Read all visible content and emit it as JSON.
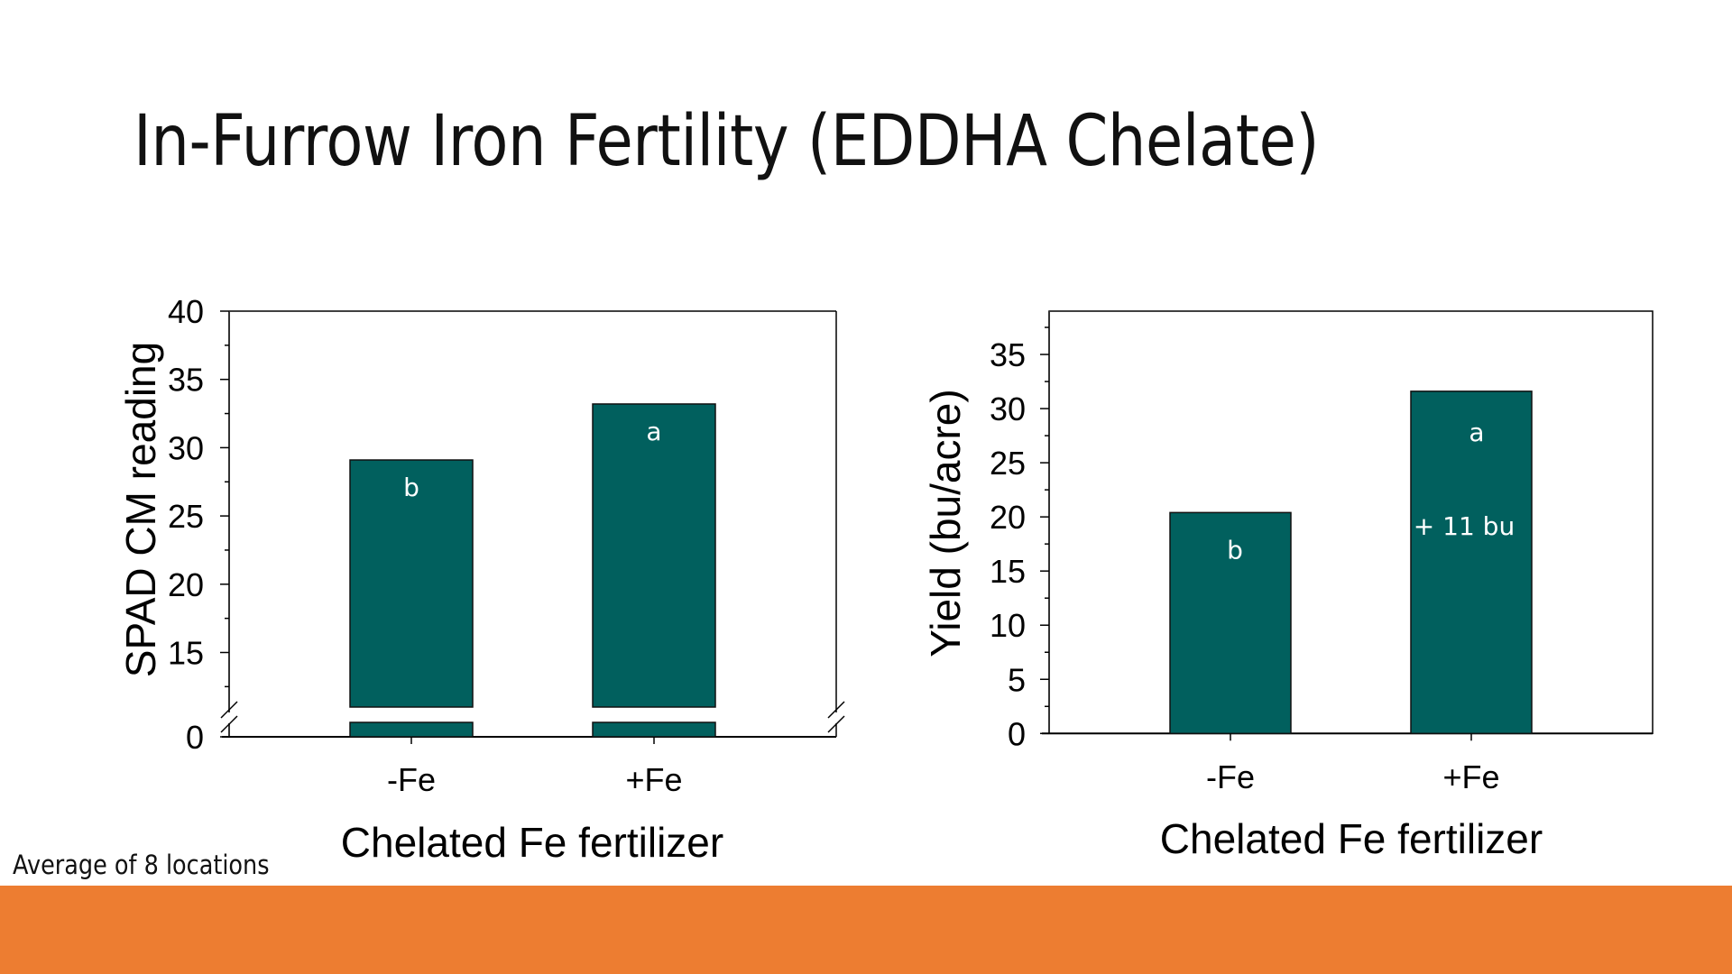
{
  "slide": {
    "title": "In-Furrow Iron Fertility (EDDHA Chelate)",
    "note": "Average of 8 locations",
    "accent_color": "#ED7D31",
    "bar_color": "#01605E"
  },
  "chart_data": [
    {
      "type": "bar",
      "title": "",
      "xlabel": "Chelated Fe fertilizer",
      "ylabel": "SPAD CM reading",
      "categories": [
        "-Fe",
        "+Fe"
      ],
      "values": [
        29.1,
        33.2
      ],
      "bar_labels": [
        "b",
        "a"
      ],
      "annotations": [],
      "ylim": [
        0,
        40
      ],
      "axis_break": [
        1,
        11
      ],
      "yticks": [
        0,
        15,
        20,
        25,
        30,
        35,
        40
      ],
      "grid": false,
      "legend": "none"
    },
    {
      "type": "bar",
      "title": "",
      "xlabel": "Chelated Fe fertilizer",
      "ylabel": "Yield (bu/acre)",
      "categories": [
        "-Fe",
        "+Fe"
      ],
      "values": [
        20.4,
        31.6
      ],
      "bar_labels": [
        "b",
        "a"
      ],
      "annotations": [
        {
          "category": "+Fe",
          "text": "+ 11 bu"
        }
      ],
      "ylim": [
        0,
        39
      ],
      "yticks": [
        0,
        5,
        10,
        15,
        20,
        25,
        30,
        35
      ],
      "grid": false,
      "legend": "none"
    }
  ]
}
